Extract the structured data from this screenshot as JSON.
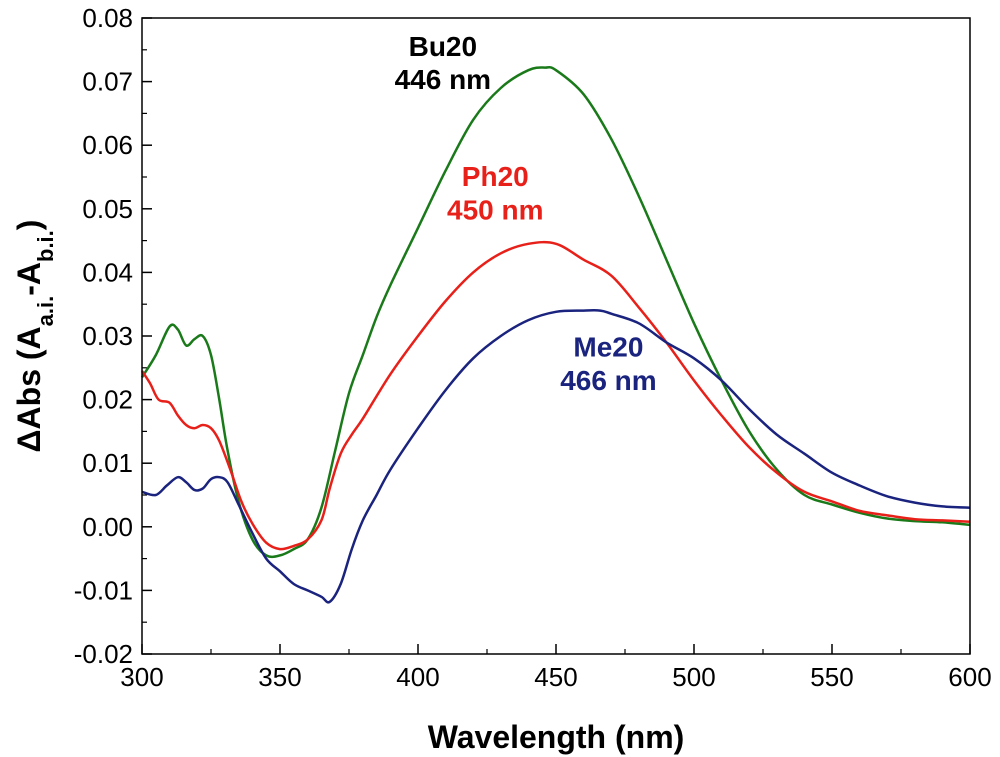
{
  "chart_data": {
    "type": "line",
    "xlabel": "Wavelength (nm)",
    "ylabel": {
      "prefix": "ΔAbs (A",
      "sub1": "a.i.",
      "mid": "-A",
      "sub2": "b.i.",
      "suffix": ")"
    },
    "xlim": [
      300,
      600
    ],
    "ylim": [
      -0.02,
      0.08
    ],
    "xticks": [
      300,
      350,
      400,
      450,
      500,
      550,
      600
    ],
    "xtick_labels": [
      "300",
      "350",
      "400",
      "450",
      "500",
      "550",
      "600"
    ],
    "yticks": [
      -0.02,
      -0.01,
      0.0,
      0.01,
      0.02,
      0.03,
      0.04,
      0.05,
      0.06,
      0.07,
      0.08
    ],
    "ytick_labels": [
      "-0.02",
      "-0.01",
      "0.00",
      "0.01",
      "0.02",
      "0.03",
      "0.04",
      "0.05",
      "0.06",
      "0.07",
      "0.08"
    ],
    "grid": false,
    "series": [
      {
        "color": "#1a7a1a",
        "x": [
          300,
          305,
          310,
          313,
          316,
          319,
          322,
          325,
          328,
          331,
          335,
          340,
          345,
          350,
          355,
          360,
          365,
          370,
          375,
          380,
          385,
          390,
          400,
          410,
          420,
          430,
          440,
          446,
          450,
          460,
          470,
          480,
          490,
          500,
          510,
          520,
          530,
          540,
          550,
          560,
          570,
          580,
          590,
          600
        ],
        "y": [
          0.0235,
          0.027,
          0.0315,
          0.031,
          0.0285,
          0.0295,
          0.03,
          0.027,
          0.02,
          0.012,
          0.004,
          -0.002,
          -0.0045,
          -0.0045,
          -0.0035,
          -0.002,
          0.003,
          0.012,
          0.021,
          0.027,
          0.033,
          0.038,
          0.047,
          0.056,
          0.064,
          0.069,
          0.0718,
          0.0722,
          0.0718,
          0.068,
          0.061,
          0.052,
          0.042,
          0.032,
          0.023,
          0.015,
          0.009,
          0.005,
          0.0035,
          0.0022,
          0.0013,
          0.0009,
          0.0007,
          0.0003
        ]
      },
      {
        "color": "#e8201a",
        "x": [
          300,
          303,
          306,
          310,
          313,
          316,
          319,
          322,
          325,
          328,
          332,
          336,
          340,
          345,
          350,
          355,
          360,
          365,
          368,
          372,
          376,
          380,
          390,
          400,
          410,
          420,
          430,
          440,
          450,
          460,
          470,
          480,
          490,
          500,
          510,
          520,
          530,
          540,
          550,
          560,
          570,
          580,
          590,
          600
        ],
        "y": [
          0.0245,
          0.0225,
          0.02,
          0.0195,
          0.0175,
          0.016,
          0.0155,
          0.016,
          0.0155,
          0.0135,
          0.009,
          0.004,
          0.0005,
          -0.0025,
          -0.0035,
          -0.003,
          -0.002,
          0.001,
          0.006,
          0.0115,
          0.0145,
          0.017,
          0.024,
          0.03,
          0.0355,
          0.04,
          0.043,
          0.0445,
          0.0445,
          0.042,
          0.0395,
          0.0345,
          0.029,
          0.023,
          0.0175,
          0.0125,
          0.0085,
          0.0055,
          0.004,
          0.0025,
          0.0018,
          0.0012,
          0.001,
          0.0008
        ]
      },
      {
        "color": "#1a237e",
        "x": [
          300,
          305,
          309,
          313,
          316,
          319,
          322,
          325,
          328,
          331,
          335,
          340,
          345,
          350,
          355,
          360,
          365,
          368,
          372,
          376,
          380,
          385,
          390,
          400,
          410,
          420,
          430,
          440,
          450,
          460,
          466,
          470,
          480,
          490,
          500,
          510,
          520,
          530,
          540,
          550,
          560,
          570,
          580,
          590,
          600
        ],
        "y": [
          0.0055,
          0.005,
          0.0065,
          0.0078,
          0.007,
          0.0058,
          0.006,
          0.0075,
          0.0078,
          0.007,
          0.0035,
          -0.001,
          -0.005,
          -0.007,
          -0.009,
          -0.01,
          -0.011,
          -0.0118,
          -0.009,
          -0.0035,
          0.001,
          0.005,
          0.009,
          0.0155,
          0.0215,
          0.0265,
          0.03,
          0.0325,
          0.0338,
          0.034,
          0.034,
          0.0335,
          0.032,
          0.029,
          0.0265,
          0.023,
          0.0185,
          0.0145,
          0.0115,
          0.0085,
          0.0065,
          0.0048,
          0.0038,
          0.0032,
          0.003
        ]
      }
    ],
    "annotations": [
      {
        "lines": [
          "Bu20",
          "446 nm"
        ],
        "color": "#000000",
        "x": 409,
        "y": [
          0.074,
          0.0688
        ]
      },
      {
        "lines": [
          "Ph20",
          "450 nm"
        ],
        "color": "#e8201a",
        "x": 428,
        "y": [
          0.0536,
          0.0483
        ]
      },
      {
        "lines": [
          "Me20",
          "466 nm"
        ],
        "color": "#1a237e",
        "x": 469,
        "y": [
          0.0268,
          0.0215
        ]
      }
    ]
  }
}
